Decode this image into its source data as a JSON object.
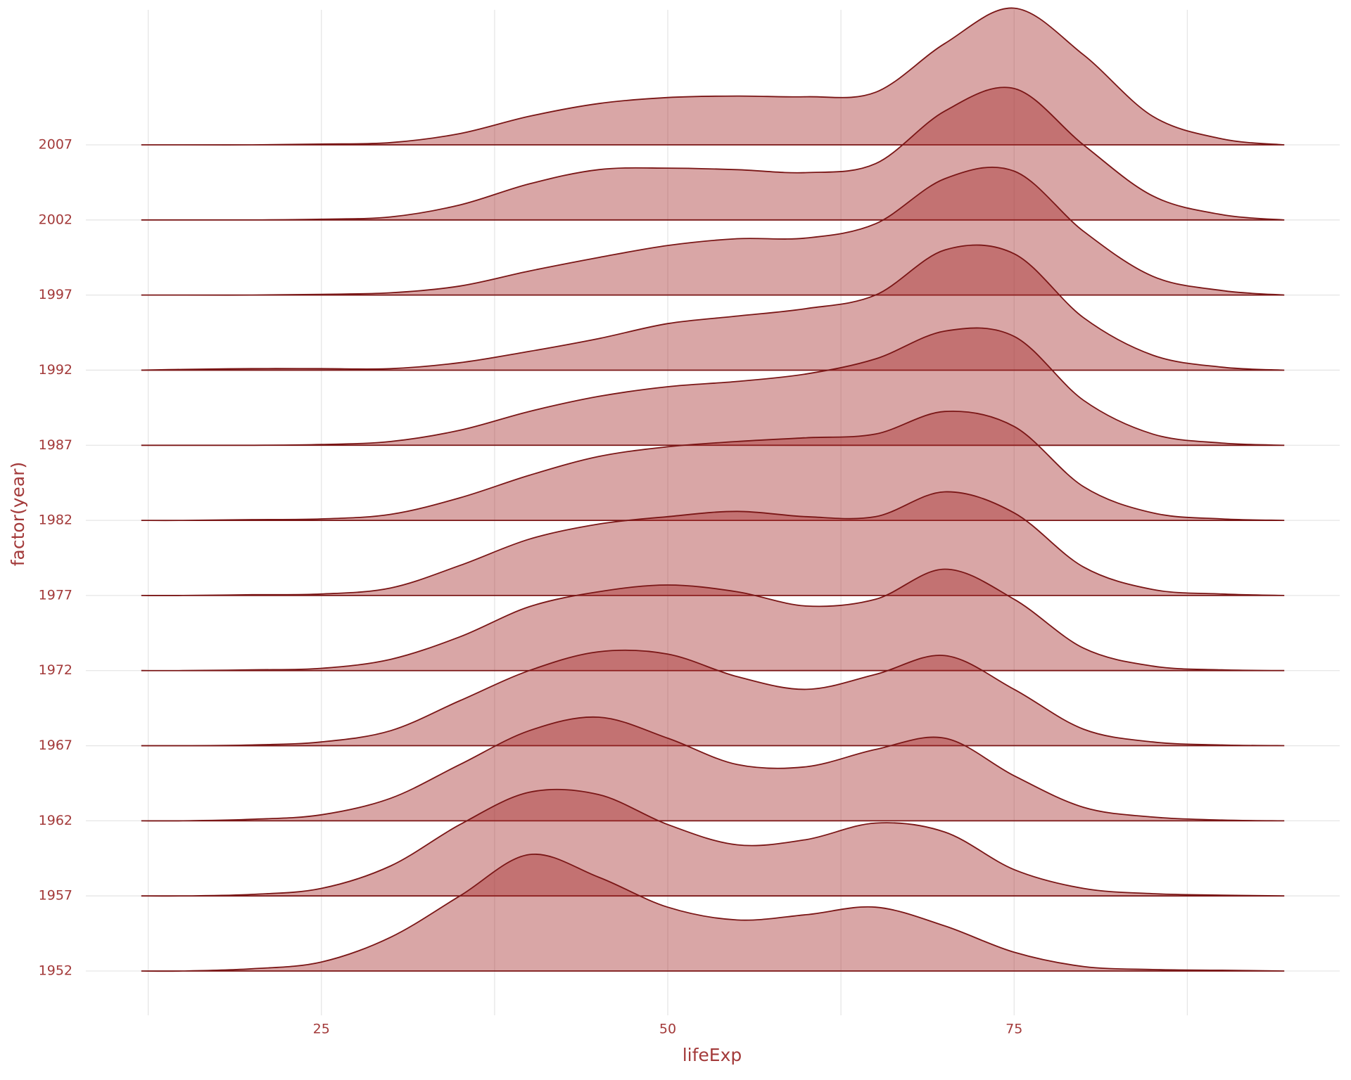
{
  "chart_data": {
    "type": "ridgeline",
    "x_label": "lifeExp",
    "y_label": "factor(year)",
    "xlim": [
      8,
      98.5
    ],
    "xticks": [
      25,
      50,
      75
    ],
    "x_minor_ticks": [
      12.5,
      37.5,
      62.5,
      87.5
    ],
    "grid": true,
    "fill": "#a52a2a",
    "alpha": 0.42,
    "line_color": "#7a1616",
    "text_color": "#a33a3a",
    "x": [
      12,
      15,
      20,
      25,
      30,
      35,
      40,
      45,
      50,
      55,
      60,
      65,
      70,
      75,
      80,
      85,
      90,
      94.5
    ],
    "series": [
      {
        "name": "1952",
        "values": [
          0,
          0,
          0.03,
          0.12,
          0.45,
          1.0,
          1.55,
          1.25,
          0.85,
          0.68,
          0.75,
          0.85,
          0.6,
          0.25,
          0.06,
          0.02,
          0.01,
          0
        ]
      },
      {
        "name": "1957",
        "values": [
          0,
          0,
          0.02,
          0.1,
          0.4,
          0.95,
          1.38,
          1.35,
          0.95,
          0.68,
          0.75,
          0.97,
          0.85,
          0.35,
          0.1,
          0.03,
          0.01,
          0
        ]
      },
      {
        "name": "1962",
        "values": [
          0,
          0,
          0.02,
          0.08,
          0.3,
          0.75,
          1.2,
          1.38,
          1.1,
          0.75,
          0.72,
          0.95,
          1.1,
          0.6,
          0.18,
          0.05,
          0.01,
          0
        ]
      },
      {
        "name": "1967",
        "values": [
          0,
          0,
          0.01,
          0.05,
          0.2,
          0.6,
          1.0,
          1.25,
          1.22,
          0.92,
          0.75,
          0.95,
          1.2,
          0.75,
          0.22,
          0.05,
          0.01,
          0
        ]
      },
      {
        "name": "1972",
        "values": [
          0,
          0,
          0.01,
          0.03,
          0.15,
          0.45,
          0.85,
          1.05,
          1.14,
          1.05,
          0.86,
          0.95,
          1.35,
          0.95,
          0.3,
          0.06,
          0.01,
          0
        ]
      },
      {
        "name": "1977",
        "values": [
          0,
          0,
          0.01,
          0.02,
          0.1,
          0.4,
          0.75,
          0.95,
          1.05,
          1.12,
          1.05,
          1.05,
          1.38,
          1.1,
          0.38,
          0.08,
          0.02,
          0
        ]
      },
      {
        "name": "1982",
        "values": [
          0,
          0,
          0.01,
          0.02,
          0.08,
          0.3,
          0.6,
          0.85,
          0.98,
          1.05,
          1.1,
          1.15,
          1.45,
          1.25,
          0.45,
          0.1,
          0.02,
          0
        ]
      },
      {
        "name": "1987",
        "values": [
          0,
          0,
          0,
          0.01,
          0.05,
          0.2,
          0.45,
          0.65,
          0.78,
          0.85,
          0.95,
          1.15,
          1.52,
          1.45,
          0.6,
          0.15,
          0.03,
          0
        ]
      },
      {
        "name": "1992",
        "values": [
          0,
          0.01,
          0.02,
          0.02,
          0.02,
          0.1,
          0.25,
          0.42,
          0.62,
          0.72,
          0.82,
          1.0,
          1.6,
          1.55,
          0.7,
          0.2,
          0.04,
          0
        ]
      },
      {
        "name": "1997",
        "values": [
          0,
          0,
          0,
          0.01,
          0.03,
          0.12,
          0.32,
          0.5,
          0.66,
          0.75,
          0.76,
          0.95,
          1.55,
          1.65,
          0.85,
          0.25,
          0.06,
          0
        ]
      },
      {
        "name": "2002",
        "values": [
          0,
          0,
          0,
          0.01,
          0.04,
          0.2,
          0.48,
          0.67,
          0.69,
          0.67,
          0.63,
          0.75,
          1.45,
          1.75,
          1.0,
          0.32,
          0.07,
          0
        ]
      },
      {
        "name": "2007",
        "values": [
          0,
          0,
          0,
          0.01,
          0.03,
          0.15,
          0.38,
          0.55,
          0.63,
          0.65,
          0.64,
          0.7,
          1.35,
          1.82,
          1.2,
          0.38,
          0.08,
          0
        ]
      }
    ]
  }
}
